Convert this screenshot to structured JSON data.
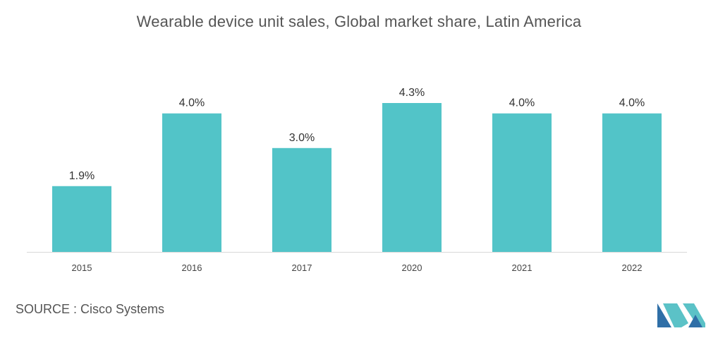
{
  "chart_data": {
    "type": "bar",
    "title": "Wearable device unit sales, Global market share, Latin America",
    "categories": [
      "2015",
      "2016",
      "2017",
      "2020",
      "2021",
      "2022"
    ],
    "values": [
      1.9,
      4.0,
      3.0,
      4.3,
      4.0,
      4.0
    ],
    "value_labels": [
      "1.9%",
      "4.0%",
      "3.0%",
      "4.3%",
      "4.0%",
      "4.0%"
    ],
    "xlabel": "",
    "ylabel": "",
    "ylim": [
      0,
      4.3
    ],
    "grid": false,
    "legend": "none",
    "bar_color": "#52c4c8",
    "axis_color": "#d9d9d9"
  },
  "source": {
    "text": "SOURCE : Cisco Systems"
  },
  "logo": {
    "icon": "mordor-intelligence-logo",
    "colors": [
      "#2f6fa7",
      "#5bc2c7"
    ]
  }
}
